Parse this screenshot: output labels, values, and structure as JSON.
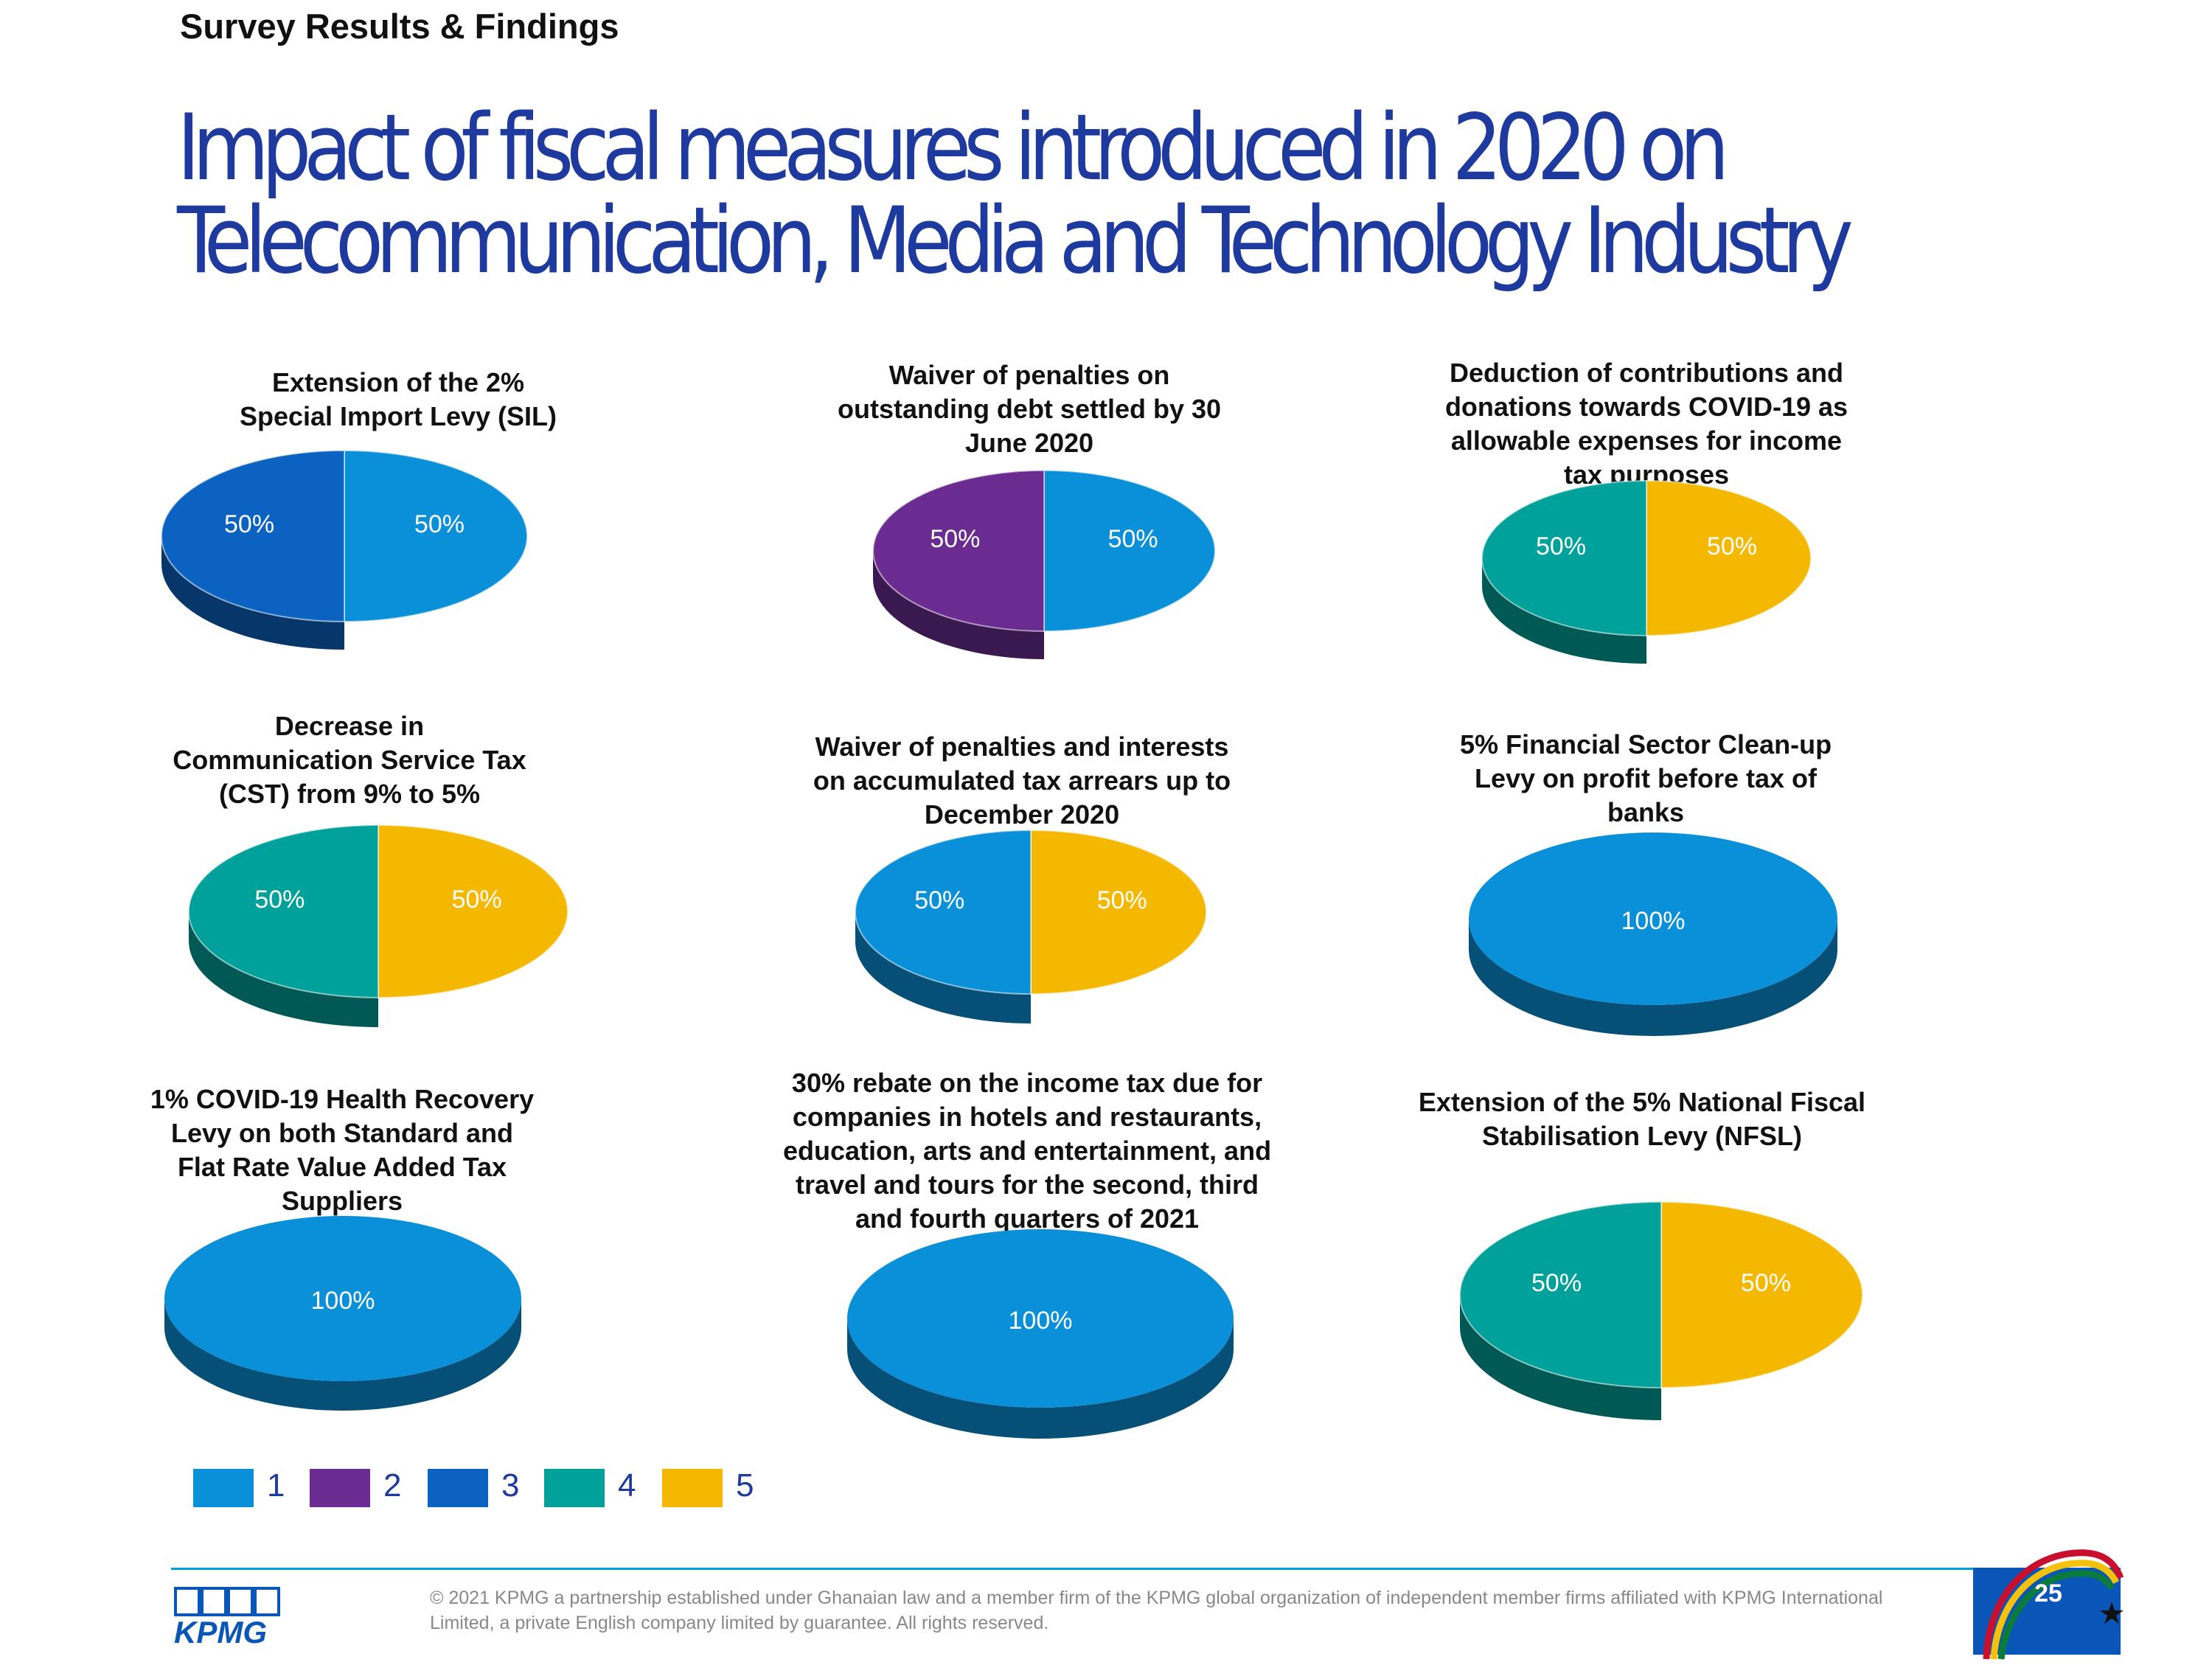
{
  "header": {
    "section": "Survey Results & Findings"
  },
  "title": {
    "line1": "Impact of fiscal measures introduced in 2020 on",
    "line2": "Telecommunication, Media and Technology Industry"
  },
  "colors": {
    "1": "#0a8fd9",
    "2": "#6a2c91",
    "3": "#0b62c0",
    "4": "#00a19a",
    "5": "#f5b800",
    "green_alt": "#4caf8a",
    "cyan_alt": "#00aeef",
    "title_blue": "#1e3a9e"
  },
  "chart_data": [
    {
      "type": "pie",
      "title": "Extension of the 2%\nSpecial Import Levy (SIL)",
      "slices": [
        {
          "category": "1",
          "value": 50,
          "label": "50%"
        },
        {
          "category": "3",
          "value": 50,
          "label": "50%"
        }
      ]
    },
    {
      "type": "pie",
      "title": "Waiver of penalties  on\noutstanding debt settled by 30\nJune 2020",
      "slices": [
        {
          "category": "1",
          "value": 50,
          "label": "50%"
        },
        {
          "category": "2",
          "value": 50,
          "label": "50%"
        }
      ]
    },
    {
      "type": "pie",
      "title": "Deduction of contributions and\ndonations towards COVID-19 as\nallowable expenses for income\ntax purposes",
      "slices": [
        {
          "category": "5",
          "value": 50,
          "label": "50%"
        },
        {
          "category": "4",
          "value": 50,
          "label": "50%"
        }
      ]
    },
    {
      "type": "pie",
      "title": "Decrease in\nCommunication Service Tax\n(CST) from 9% to 5%",
      "slices": [
        {
          "category": "5",
          "value": 50,
          "label": "50%"
        },
        {
          "category": "4",
          "value": 50,
          "label": "50%"
        }
      ]
    },
    {
      "type": "pie",
      "title": "Waiver of penalties and interests\non  accumulated tax arrears up to\nDecember 2020",
      "slices": [
        {
          "category": "5",
          "value": 50,
          "label": "50%"
        },
        {
          "category": "1",
          "value": 50,
          "label": "50%"
        }
      ]
    },
    {
      "type": "pie",
      "title": "5% Financial Sector Clean-up\nLevy on profit before tax of\nbanks",
      "slices": [
        {
          "category": "1",
          "value": 100,
          "label": "100%"
        }
      ]
    },
    {
      "type": "pie",
      "title": "1% COVID-19 Health Recovery\nLevy on both Standard and\nFlat Rate Value Added Tax\nSuppliers",
      "slices": [
        {
          "category": "1",
          "value": 100,
          "label": "100%"
        }
      ]
    },
    {
      "type": "pie",
      "title": "30% rebate on the income tax due for\ncompanies in hotels and restaurants,\neducation, arts and entertainment, and\ntravel and tours for the second, third\nand fourth quarters of 2021",
      "slices": [
        {
          "category": "1",
          "value": 100,
          "label": "100%"
        }
      ]
    },
    {
      "type": "pie",
      "title": "Extension of the 5% National Fiscal\nStabilisation Levy (NFSL)",
      "slices": [
        {
          "category": "5",
          "value": 50,
          "label": "50%"
        },
        {
          "category": "4",
          "value": 50,
          "label": "50%"
        }
      ]
    }
  ],
  "legend": [
    {
      "label": "1",
      "color": "#0a8fd9"
    },
    {
      "label": "2",
      "color": "#6a2c91"
    },
    {
      "label": "3",
      "color": "#0b62c0"
    },
    {
      "label": "4",
      "color": "#00a19a"
    },
    {
      "label": "5",
      "color": "#f5b800"
    }
  ],
  "footer": {
    "logo_text": "KPMG",
    "copyright": "© 2021 KPMG a partnership established under Ghanaian law and a member firm of the KPMG global organization of independent member firms affiliated with KPMG International Limited, a private English company limited by guarantee. All rights reserved.",
    "page_number": "25"
  }
}
